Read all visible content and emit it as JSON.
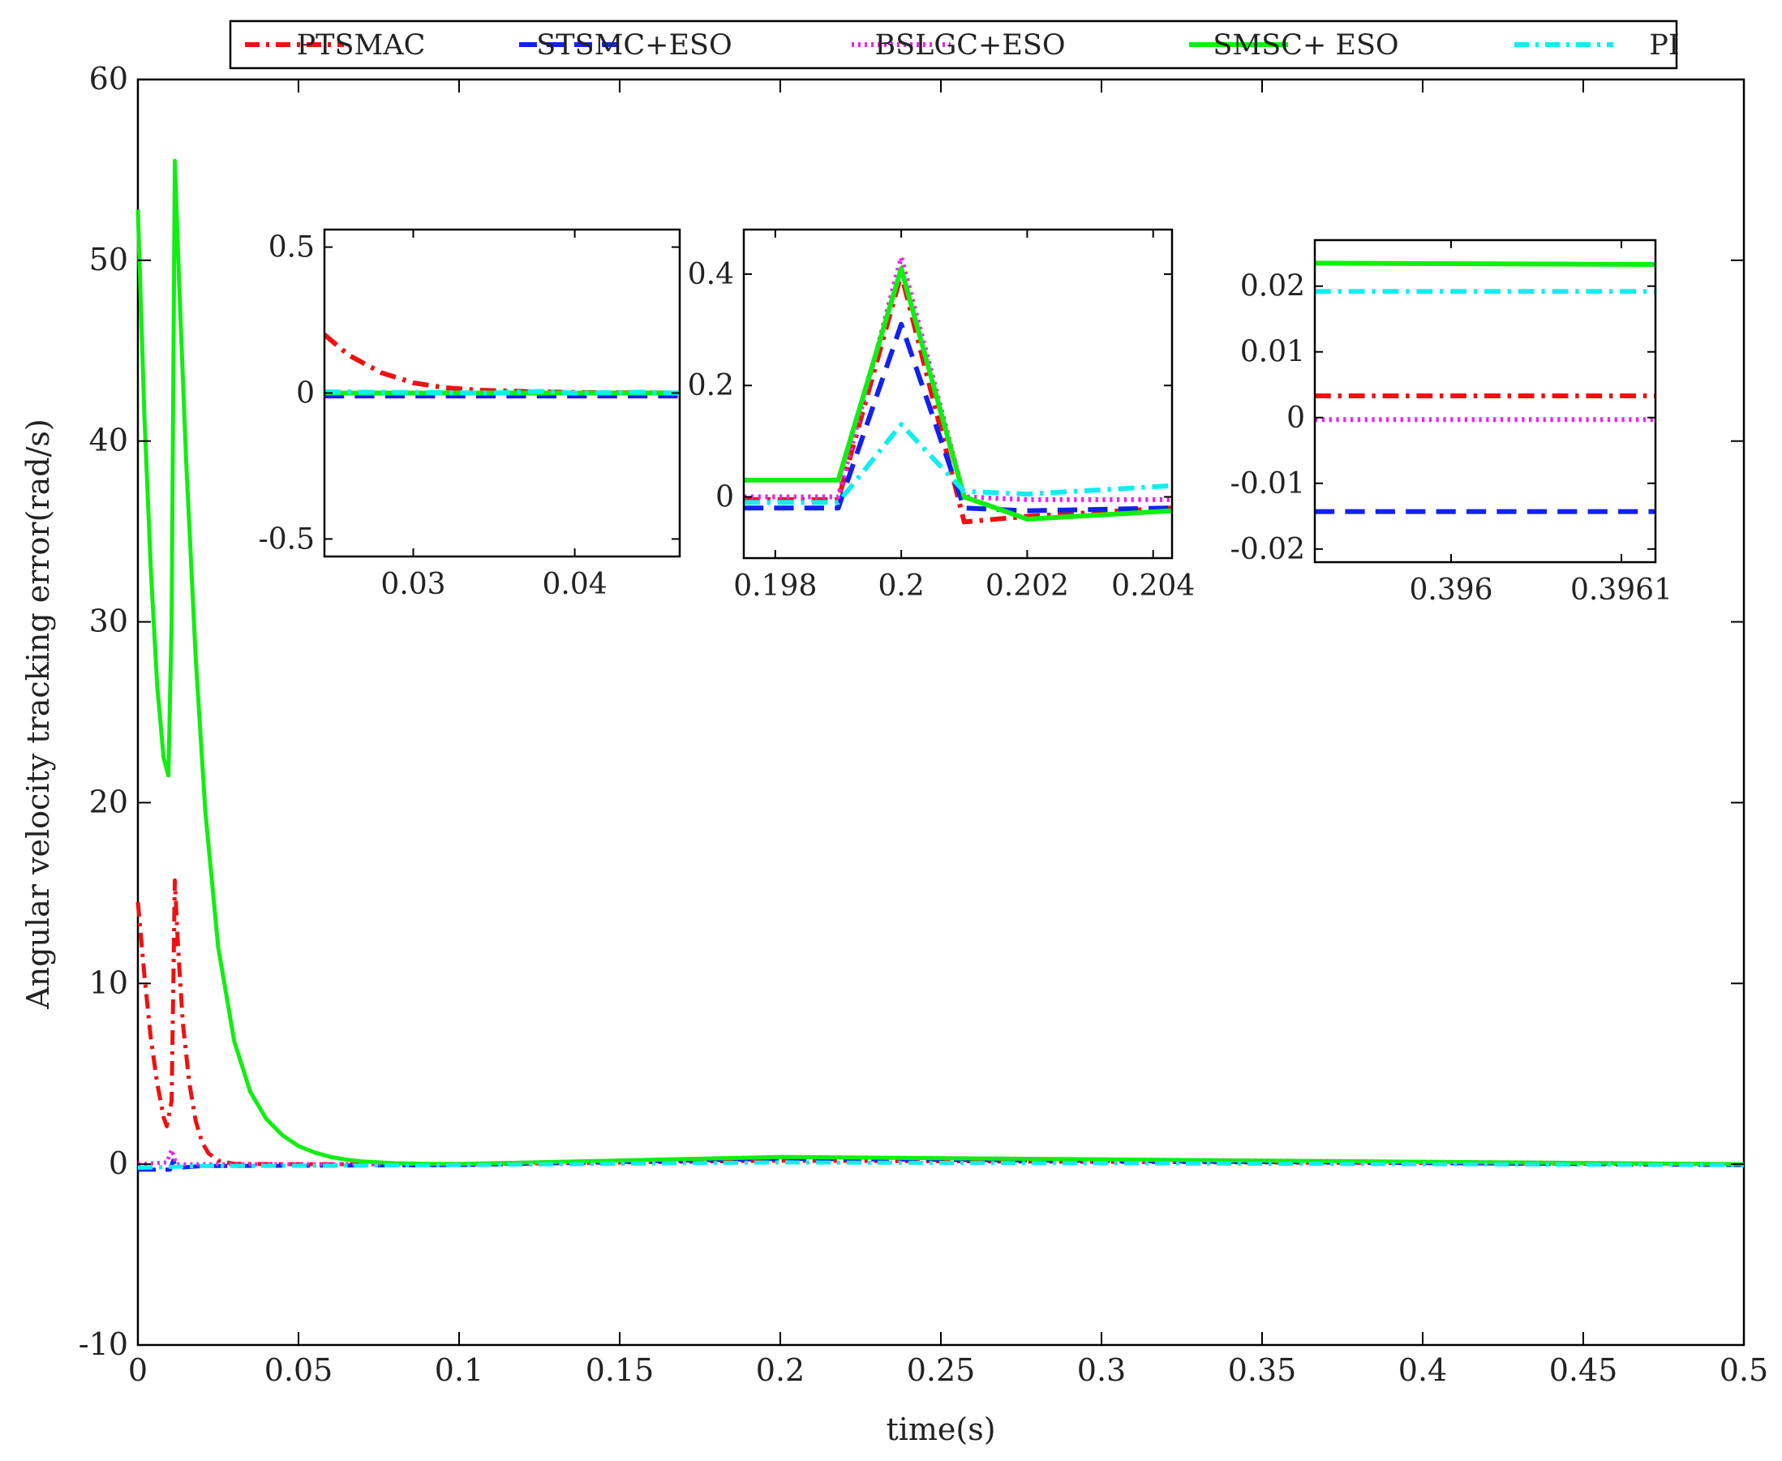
{
  "chart_data": {
    "type": "line",
    "xlabel": "time(s)",
    "ylabel": "Angular velocity tracking error(rad/s)",
    "xlim": [
      0,
      0.5
    ],
    "ylim": [
      -10,
      60
    ],
    "xticks": [
      0,
      0.05,
      0.1,
      0.15,
      0.2,
      0.25,
      0.3,
      0.35,
      0.4,
      0.45,
      0.5
    ],
    "xtick_labels": [
      "0",
      "0.05",
      "0.1",
      "0.15",
      "0.2",
      "0.25",
      "0.3",
      "0.35",
      "0.4",
      "0.45",
      "0.5"
    ],
    "yticks": [
      -10,
      0,
      10,
      20,
      30,
      40,
      50,
      60
    ],
    "ytick_labels": [
      "-10",
      "0",
      "10",
      "20",
      "30",
      "40",
      "50",
      "60"
    ],
    "grid": false,
    "legend": {
      "position": "top",
      "orientation": "horizontal"
    },
    "series": [
      {
        "name": "PTSMAC",
        "color": "#ee1111",
        "dash": "dashdot",
        "x": [
          0,
          0.002,
          0.004,
          0.006,
          0.008,
          0.009,
          0.0105,
          0.0115,
          0.0125,
          0.014,
          0.016,
          0.018,
          0.02,
          0.022,
          0.025,
          0.03,
          0.05,
          0.1,
          0.2,
          0.5
        ],
        "y": [
          14.5,
          10.5,
          7,
          4.5,
          2.6,
          2.1,
          3.5,
          15.7,
          12,
          7.8,
          4.5,
          2.4,
          1.2,
          0.6,
          0.2,
          0.02,
          0.0,
          0.0,
          0.2,
          0.0
        ]
      },
      {
        "name": "STSMC+ESO",
        "color": "#1122ee",
        "dash": "dashed",
        "x": [
          0,
          0.01,
          0.011,
          0.012,
          0.02,
          0.1,
          0.2,
          0.5
        ],
        "y": [
          -0.3,
          -0.3,
          0.2,
          -0.2,
          -0.1,
          -0.05,
          0.3,
          -0.05
        ]
      },
      {
        "name": "BSLGC+ESO",
        "color": "#ee22ee",
        "dash": "dotted",
        "x": [
          0,
          0.009,
          0.0105,
          0.012,
          0.02,
          0.1,
          0.2,
          0.5
        ],
        "y": [
          0.0,
          0.1,
          0.8,
          0.0,
          0.0,
          0.0,
          0.4,
          0.0
        ]
      },
      {
        "name": "SMSC+ ESO",
        "color": "#11ee11",
        "dash": "solid",
        "x": [
          0,
          0.002,
          0.004,
          0.006,
          0.008,
          0.0095,
          0.0105,
          0.0115,
          0.013,
          0.015,
          0.018,
          0.021,
          0.025,
          0.03,
          0.035,
          0.04,
          0.045,
          0.05,
          0.055,
          0.06,
          0.065,
          0.07,
          0.08,
          0.09,
          0.1,
          0.2,
          0.5
        ],
        "y": [
          52.8,
          41.5,
          33,
          26.5,
          22.5,
          21.5,
          30,
          55.5,
          48,
          39,
          28,
          19.5,
          12,
          6.8,
          4.0,
          2.5,
          1.6,
          1.0,
          0.65,
          0.4,
          0.25,
          0.15,
          0.05,
          0.02,
          0.01,
          0.4,
          0.0
        ]
      },
      {
        "name": "PI",
        "color": "#11eeee",
        "dash": "dashdot",
        "x": [
          0,
          0.02,
          0.1,
          0.2,
          0.5
        ],
        "y": [
          -0.2,
          -0.1,
          -0.05,
          0.1,
          -0.05
        ]
      }
    ],
    "insets": [
      {
        "xlim": [
          0.0245,
          0.0465
        ],
        "ylim": [
          -0.56,
          0.56
        ],
        "xticks": [
          0.03,
          0.04
        ],
        "xtick_labels": [
          "0.03",
          "0.04"
        ],
        "yticks": [
          -0.5,
          0,
          0.5
        ],
        "ytick_labels": [
          "-0.5",
          "0",
          "0.5"
        ],
        "series": [
          {
            "name": "PTSMAC",
            "x": [
              0.0245,
              0.026,
              0.028,
              0.03,
              0.032,
              0.034,
              0.037,
              0.04,
              0.0465
            ],
            "y": [
              0.2,
              0.13,
              0.07,
              0.035,
              0.018,
              0.01,
              0.005,
              0.002,
              0.0
            ]
          },
          {
            "name": "STSMC+ESO",
            "x": [
              0.0245,
              0.0465
            ],
            "y": [
              -0.01,
              -0.01
            ]
          },
          {
            "name": "BSLGC+ESO",
            "x": [
              0.0245,
              0.0465
            ],
            "y": [
              0.0,
              0.0
            ]
          },
          {
            "name": "SMSC+ ESO",
            "x": [
              0.0245,
              0.0465
            ],
            "y": [
              0.0,
              0.0
            ]
          },
          {
            "name": "PI",
            "x": [
              0.0245,
              0.03,
              0.035,
              0.038,
              0.04,
              0.044,
              0.0465
            ],
            "y": [
              0.004,
              0.002,
              0.0,
              0.006,
              0.0,
              0.003,
              0.0
            ]
          }
        ]
      },
      {
        "xlim": [
          0.1975,
          0.2043
        ],
        "ylim": [
          -0.11,
          0.48
        ],
        "xticks": [
          0.198,
          0.2,
          0.202,
          0.204
        ],
        "xtick_labels": [
          "0.198",
          "0.2",
          "0.202",
          "0.204"
        ],
        "yticks": [
          0,
          0.2,
          0.4
        ],
        "ytick_labels": [
          "0",
          "0.2",
          "0.4"
        ],
        "series": [
          {
            "name": "PTSMAC",
            "x": [
              0.1975,
              0.199,
              0.2,
              0.201,
              0.202,
              0.2043
            ],
            "y": [
              -0.005,
              -0.005,
              0.4,
              -0.045,
              -0.035,
              -0.02
            ]
          },
          {
            "name": "STSMC+ESO",
            "x": [
              0.1975,
              0.199,
              0.2,
              0.201,
              0.202,
              0.2043
            ],
            "y": [
              -0.02,
              -0.02,
              0.31,
              -0.02,
              -0.025,
              -0.02
            ]
          },
          {
            "name": "BSLGC+ESO",
            "x": [
              0.1975,
              0.199,
              0.2,
              0.201,
              0.202,
              0.2043
            ],
            "y": [
              0.0,
              0.0,
              0.43,
              0.0,
              -0.005,
              -0.005
            ]
          },
          {
            "name": "SMSC+ ESO",
            "x": [
              0.1975,
              0.199,
              0.2,
              0.201,
              0.202,
              0.2043
            ],
            "y": [
              0.03,
              0.03,
              0.41,
              0.0,
              -0.04,
              -0.025
            ]
          },
          {
            "name": "PI",
            "x": [
              0.1975,
              0.199,
              0.2,
              0.201,
              0.202,
              0.2043
            ],
            "y": [
              -0.01,
              -0.01,
              0.13,
              0.01,
              0.005,
              0.02
            ]
          }
        ]
      },
      {
        "xlim": [
          0.39592,
          0.39612
        ],
        "ylim": [
          -0.022,
          0.027
        ],
        "xticks": [
          0.396,
          0.3961
        ],
        "xtick_labels": [
          "0.396",
          "0.3961"
        ],
        "yticks": [
          -0.02,
          -0.01,
          0,
          0.01,
          0.02
        ],
        "ytick_labels": [
          "-0.02",
          "-0.01",
          "0",
          "0.01",
          "0.02"
        ],
        "series": [
          {
            "name": "PTSMAC",
            "x": [
              0.39592,
              0.39612
            ],
            "y": [
              0.0033,
              0.0033
            ]
          },
          {
            "name": "STSMC+ESO",
            "x": [
              0.39592,
              0.39612
            ],
            "y": [
              -0.0143,
              -0.0143
            ]
          },
          {
            "name": "BSLGC+ESO",
            "x": [
              0.39592,
              0.39612
            ],
            "y": [
              -0.0003,
              -0.0003
            ]
          },
          {
            "name": "SMSC+ ESO",
            "x": [
              0.39592,
              0.39612
            ],
            "y": [
              0.0235,
              0.0233
            ]
          },
          {
            "name": "PI",
            "x": [
              0.39592,
              0.39612
            ],
            "y": [
              0.0192,
              0.0192
            ]
          }
        ]
      }
    ]
  }
}
